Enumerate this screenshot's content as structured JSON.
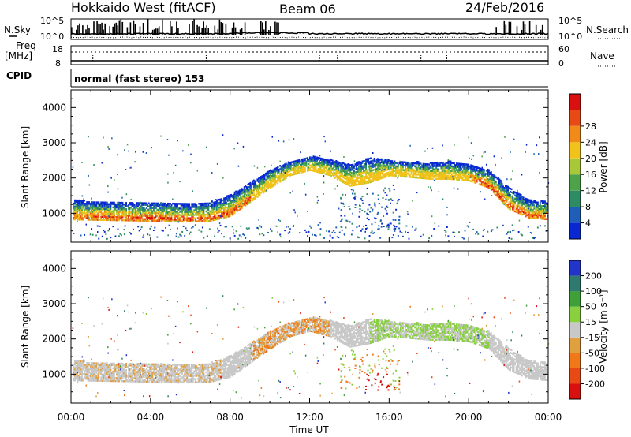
{
  "header": {
    "station": "Hokkaido West (fitACF)",
    "beam": "Beam 06",
    "date": "24/Feb/2016"
  },
  "strip": {
    "nsky_label": "N.Sky",
    "nsky_ticks": [
      "10^5",
      "10^0"
    ],
    "nsearch_label": "N.Search",
    "nsearch_ticks": [
      "10^5",
      "10^0"
    ],
    "freq_label_1": "Freq",
    "freq_label_2": "[MHz]",
    "freq_ticks": [
      "18",
      "8"
    ],
    "nave_label": "Nave",
    "nave_ticks": [
      "60",
      "0"
    ],
    "cpid_label": "CPID",
    "mode_text": "normal (fast stereo) 153"
  },
  "colors": {
    "power": [
      "#0a28d2",
      "#1f5fb8",
      "#2e8c64",
      "#4ea34a",
      "#a8c83a",
      "#f0c21a",
      "#f08a18",
      "#e84a16",
      "#d81010"
    ],
    "velocity": [
      "#2335c8",
      "#2e7a6e",
      "#3fa03a",
      "#88d040",
      "#c8c8c8",
      "#e0a040",
      "#f07818",
      "#e84a16",
      "#d81010"
    ]
  },
  "chart_data": [
    {
      "type": "heatmap",
      "parameter": "Power",
      "ylabel": "Slant Range [km]",
      "ylim": [
        180,
        4500
      ],
      "yticks": [
        "1000",
        "2000",
        "3000",
        "4000"
      ],
      "colorbar_label": "Power [dB]",
      "colorbar_ticks": [
        "4",
        "8",
        "12",
        "16",
        "20",
        "24",
        "28"
      ],
      "colorbar_range": [
        0,
        30
      ],
      "xlim_hours": [
        0,
        24
      ],
      "echo_band": {
        "hours": [
          0,
          2,
          4,
          6,
          7,
          8,
          9,
          10,
          11,
          12,
          13,
          14,
          15,
          16,
          17,
          18,
          19,
          20,
          21,
          22,
          23,
          24
        ],
        "lower_km": [
          800,
          780,
          760,
          740,
          760,
          900,
          1300,
          1700,
          2050,
          2200,
          2050,
          1750,
          1850,
          2050,
          2000,
          1950,
          1950,
          1900,
          1700,
          1100,
          850,
          800
        ],
        "upper_km": [
          1350,
          1300,
          1280,
          1250,
          1300,
          1500,
          1850,
          2200,
          2450,
          2600,
          2500,
          2350,
          2550,
          2500,
          2450,
          2400,
          2450,
          2350,
          2200,
          1700,
          1350,
          1300
        ]
      }
    },
    {
      "type": "heatmap",
      "parameter": "Velocity",
      "ylabel": "Slant Range [km]",
      "ylim": [
        180,
        4500
      ],
      "yticks": [
        "1000",
        "2000",
        "3000",
        "4000"
      ],
      "colorbar_label": "Velocity [m s⁻¹]",
      "colorbar_ticks": [
        "200",
        "100",
        "50",
        "15",
        "-15",
        "-50",
        "-100",
        "-200"
      ],
      "xlabel": "Time UT",
      "xticks": [
        "00:00",
        "04:00",
        "08:00",
        "12:00",
        "16:00",
        "20:00",
        "00:00"
      ],
      "xlim_hours": [
        0,
        24
      ]
    }
  ]
}
